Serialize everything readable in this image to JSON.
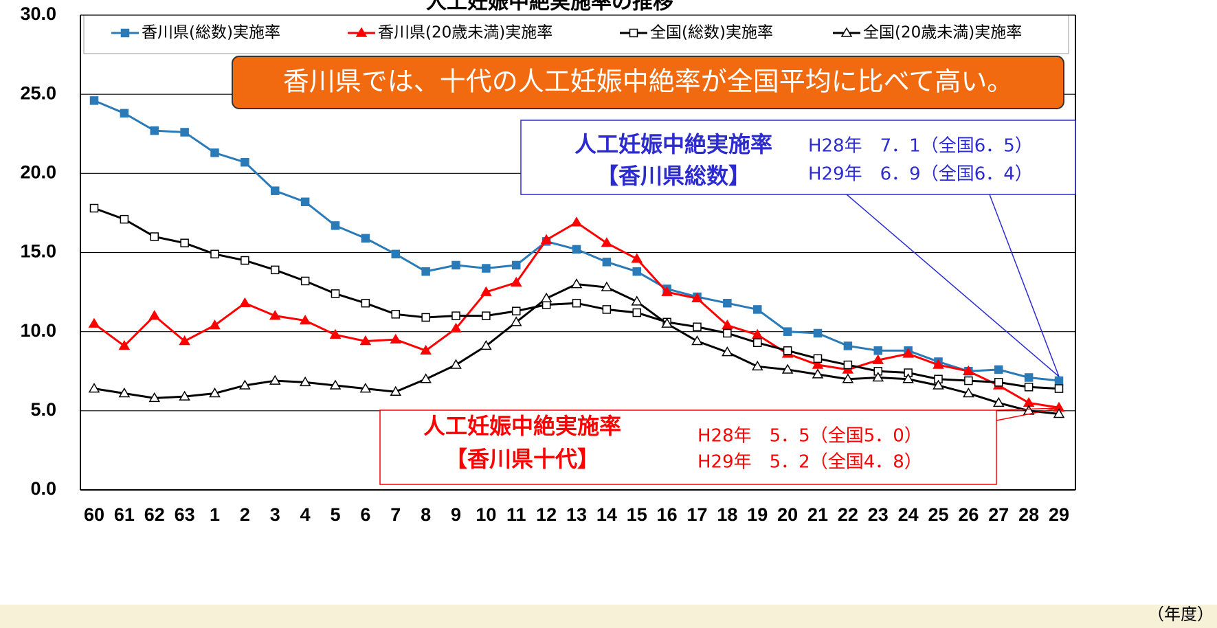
{
  "chart_data": {
    "type": "line",
    "title": "人工妊娠中絶実施率の推移",
    "x_unit": "（年度）",
    "categories": [
      "60",
      "61",
      "62",
      "63",
      "1",
      "2",
      "3",
      "4",
      "5",
      "6",
      "7",
      "8",
      "9",
      "10",
      "11",
      "12",
      "13",
      "14",
      "15",
      "16",
      "17",
      "18",
      "19",
      "20",
      "21",
      "22",
      "23",
      "24",
      "25",
      "26",
      "27",
      "28",
      "29"
    ],
    "series": [
      {
        "name": "香川県(総数)実施率",
        "color": "#2a7ab8",
        "marker": "square-filled",
        "values": [
          24.6,
          23.8,
          22.7,
          22.6,
          21.3,
          20.7,
          18.9,
          18.2,
          16.7,
          15.9,
          14.9,
          13.8,
          14.2,
          14.0,
          14.2,
          15.7,
          15.2,
          14.4,
          13.8,
          12.7,
          12.2,
          11.8,
          11.4,
          10.0,
          9.9,
          9.1,
          8.8,
          8.8,
          8.1,
          7.5,
          7.6,
          7.1,
          6.9
        ]
      },
      {
        "name": "香川県(20歳未満)実施率",
        "color": "#ff0000",
        "marker": "triangle-filled",
        "values": [
          10.5,
          9.1,
          11.0,
          9.4,
          10.4,
          11.8,
          11.0,
          10.7,
          9.8,
          9.4,
          9.5,
          8.8,
          10.2,
          12.5,
          13.1,
          15.8,
          16.9,
          15.6,
          14.6,
          12.5,
          12.1,
          10.4,
          9.8,
          8.6,
          7.9,
          7.6,
          8.2,
          8.6,
          7.9,
          7.5,
          6.6,
          5.5,
          5.2
        ]
      },
      {
        "name": "全国(総数)実施率",
        "color": "#000000",
        "marker": "square-open",
        "values": [
          17.8,
          17.1,
          16.0,
          15.6,
          14.9,
          14.5,
          13.9,
          13.2,
          12.4,
          11.8,
          11.1,
          10.9,
          11.0,
          11.0,
          11.3,
          11.7,
          11.8,
          11.4,
          11.2,
          10.6,
          10.3,
          9.9,
          9.3,
          8.8,
          8.3,
          7.9,
          7.5,
          7.4,
          7.0,
          6.9,
          6.8,
          6.5,
          6.4
        ]
      },
      {
        "name": "全国(20歳未満)実施率",
        "color": "#000000",
        "marker": "triangle-open",
        "values": [
          6.4,
          6.1,
          5.8,
          5.9,
          6.1,
          6.6,
          6.9,
          6.8,
          6.6,
          6.4,
          6.2,
          7.0,
          7.9,
          9.1,
          10.6,
          12.1,
          13.0,
          12.8,
          11.9,
          10.5,
          9.4,
          8.7,
          7.8,
          7.6,
          7.3,
          7.0,
          7.1,
          7.0,
          6.6,
          6.1,
          5.5,
          5.0,
          4.8
        ]
      }
    ],
    "ylim": [
      0,
      30
    ],
    "yticks": [
      {
        "value": 0,
        "label": "0.0"
      },
      {
        "value": 5,
        "label": "5.0"
      },
      {
        "value": 10,
        "label": "10.0"
      },
      {
        "value": 15,
        "label": "15.0"
      },
      {
        "value": 20,
        "label": "20.0"
      },
      {
        "value": 25,
        "label": "25.0"
      },
      {
        "value": 30,
        "label": "30.0"
      }
    ],
    "grid": true,
    "legend": "top",
    "banner": "香川県では、十代の人工妊娠中絶率が全国平均に比べて高い。",
    "callouts": [
      {
        "title": "人工妊娠中絶実施率",
        "subtitle": "【香川県総数】",
        "lines": [
          "H28年　7．1（全国6．5）",
          "H29年　6．9（全国6．4）"
        ],
        "color": "#2b2bd0"
      },
      {
        "title": "人工妊娠中絶実施率",
        "subtitle": "【香川県十代】",
        "lines": [
          "H28年　5．5（全国5．0）",
          "H29年　5．2（全国4．8）"
        ],
        "color": "#ff0000"
      }
    ]
  }
}
